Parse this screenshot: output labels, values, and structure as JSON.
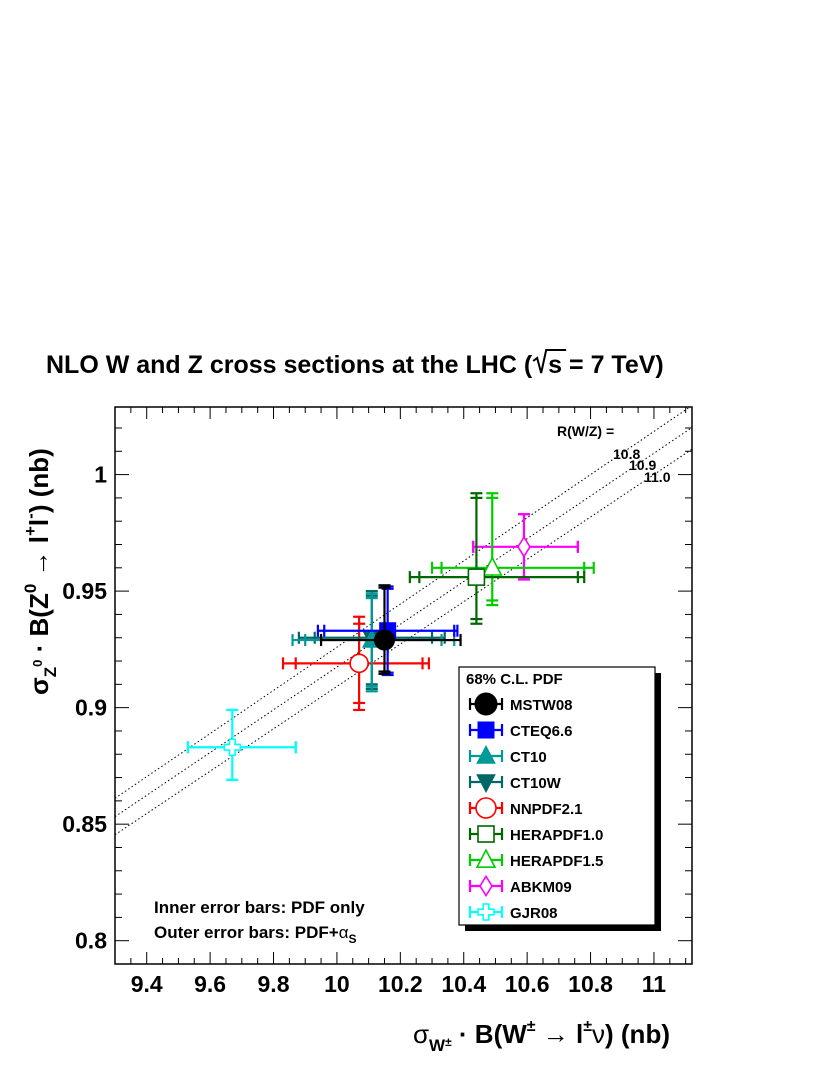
{
  "chart_data": {
    "type": "scatter",
    "title": "NLO W and Z cross sections at the LHC (√s = 7 TeV)",
    "title_parts": {
      "before_sqrt": "NLO W and Z cross sections at the LHC (",
      "after_sqrt": "s = 7 TeV)"
    },
    "xlabel": "σW± · B(W± → l±ν)  (nb)",
    "xlabel_parts": {
      "sigma": "σ",
      "sub": "W",
      "subsup": "±",
      "mid": " · ",
      "b_open": "B(W",
      "pm1": "±",
      "arrow": " → l",
      "pm2": "±",
      "nu": "ν",
      "close": ")  (nb)"
    },
    "ylabel": "σZ0 · B(Z0 → l+l-)  (nb)",
    "ylabel_parts": {
      "sigma": "σ",
      "sub": "Z",
      "subsup": "0",
      "mid": " · B(Z",
      "sup0": "0",
      "arrow": " → l",
      "plus": "+",
      "l": "l",
      "minus": "-",
      "close": ")  (nb)"
    },
    "xlim": [
      9.3,
      11.12
    ],
    "ylim": [
      0.79,
      1.029
    ],
    "x_ticks": [
      9.4,
      9.6,
      9.8,
      10,
      10.2,
      10.4,
      10.6,
      10.8,
      11
    ],
    "x_tick_labels": [
      "9.4",
      "9.6",
      "9.8",
      "10",
      "10.2",
      "10.4",
      "10.6",
      "10.8",
      "11"
    ],
    "y_ticks": [
      0.8,
      0.85,
      0.9,
      0.95,
      1.0
    ],
    "y_tick_labels": [
      "0.8",
      "0.85",
      "0.9",
      "0.95",
      "1"
    ],
    "grid": false,
    "ratio_lines": {
      "header": "R(W/Z) =",
      "values": [
        10.8,
        10.9,
        11.0
      ],
      "labels": [
        "10.8",
        "10.9",
        "11.0"
      ]
    },
    "notes": [
      {
        "prefix": "Inner error bars: PDF only",
        "alpha": ""
      },
      {
        "prefix": "Outer error bars: PDF+",
        "alpha": "α",
        "alpha_sub": "S"
      }
    ],
    "legend": {
      "title": "68% C.L. PDF",
      "placement": "bottom-right"
    },
    "series": [
      {
        "name": "MSTW08",
        "color": "#000000",
        "marker": "circle",
        "filled": true,
        "x": 10.15,
        "y": 0.929,
        "x_inner": [
          10.13,
          10.17
        ],
        "x_outer": [
          9.95,
          10.39
        ],
        "y_inner": [
          0.9155,
          0.9515
        ],
        "y_outer": [
          0.9145,
          0.9525
        ]
      },
      {
        "name": "CTEQ6.6",
        "color": "#0000ff",
        "marker": "square",
        "filled": true,
        "x": 10.16,
        "y": 0.933,
        "x_inner": [
          9.96,
          10.37
        ],
        "x_outer": [
          9.94,
          10.38
        ],
        "y_inner": [
          0.915,
          0.951
        ],
        "y_outer": [
          0.914,
          0.952
        ]
      },
      {
        "name": "CT10",
        "color": "#009999",
        "marker": "triangle-up",
        "filled": true,
        "x": 10.11,
        "y": 0.929,
        "x_inner": [
          9.9,
          10.33
        ],
        "x_outer": [
          9.86,
          10.37
        ],
        "y_inner": [
          0.909,
          0.947
        ],
        "y_outer": [
          0.907,
          0.949
        ]
      },
      {
        "name": "CT10W",
        "color": "#006666",
        "marker": "triangle-down",
        "filled": true,
        "x": 10.11,
        "y": 0.93,
        "x_inner": [
          9.93,
          10.3
        ],
        "x_outer": [
          9.88,
          10.34
        ],
        "y_inner": [
          0.91,
          0.948
        ],
        "y_outer": [
          0.908,
          0.95
        ]
      },
      {
        "name": "NNPDF2.1",
        "color": "#ff0000",
        "marker": "circle",
        "filled": false,
        "x": 10.07,
        "y": 0.919,
        "x_inner": [
          9.87,
          10.27
        ],
        "x_outer": [
          9.83,
          10.29
        ],
        "y_inner": [
          0.902,
          0.936
        ],
        "y_outer": [
          0.899,
          0.939
        ]
      },
      {
        "name": "HERAPDF1.0",
        "color": "#006600",
        "marker": "square",
        "filled": false,
        "x": 10.44,
        "y": 0.956,
        "x_inner": [
          10.26,
          10.76
        ],
        "x_outer": [
          10.23,
          10.78
        ],
        "y_inner": [
          0.938,
          0.99
        ],
        "y_outer": [
          0.936,
          0.992
        ]
      },
      {
        "name": "HERAPDF1.5",
        "color": "#00cc00",
        "marker": "triangle-up",
        "filled": false,
        "x": 10.49,
        "y": 0.96,
        "x_inner": [
          10.33,
          10.78
        ],
        "x_outer": [
          10.3,
          10.81
        ],
        "y_inner": [
          0.946,
          0.99
        ],
        "y_outer": [
          0.944,
          0.992
        ]
      },
      {
        "name": "ABKM09",
        "color": "#ff00ff",
        "marker": "diamond",
        "filled": false,
        "x": 10.59,
        "y": 0.969,
        "x_inner": [
          10.43,
          10.76
        ],
        "x_outer": [
          10.43,
          10.76
        ],
        "y_inner": [
          0.955,
          0.983
        ],
        "y_outer": [
          0.955,
          0.983
        ]
      },
      {
        "name": "GJR08",
        "color": "#00ffff",
        "marker": "cross",
        "filled": false,
        "x": 9.67,
        "y": 0.883,
        "x_inner": [
          9.53,
          9.87
        ],
        "x_outer": [
          9.53,
          9.87
        ],
        "y_inner": [
          0.869,
          0.899
        ],
        "y_outer": [
          0.869,
          0.899
        ]
      }
    ]
  }
}
